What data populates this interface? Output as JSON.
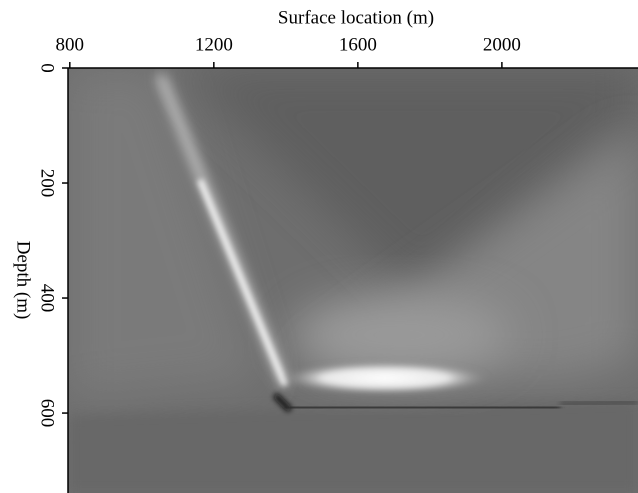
{
  "chart_data": {
    "type": "image",
    "xlabel": "Surface location (m)",
    "ylabel": "Depth (m)",
    "xlim": [
      795,
      2378
    ],
    "ylim": [
      0,
      739
    ],
    "xticks": [
      800,
      1200,
      1600,
      2000
    ],
    "yticks": [
      0,
      200,
      400,
      600
    ]
  }
}
